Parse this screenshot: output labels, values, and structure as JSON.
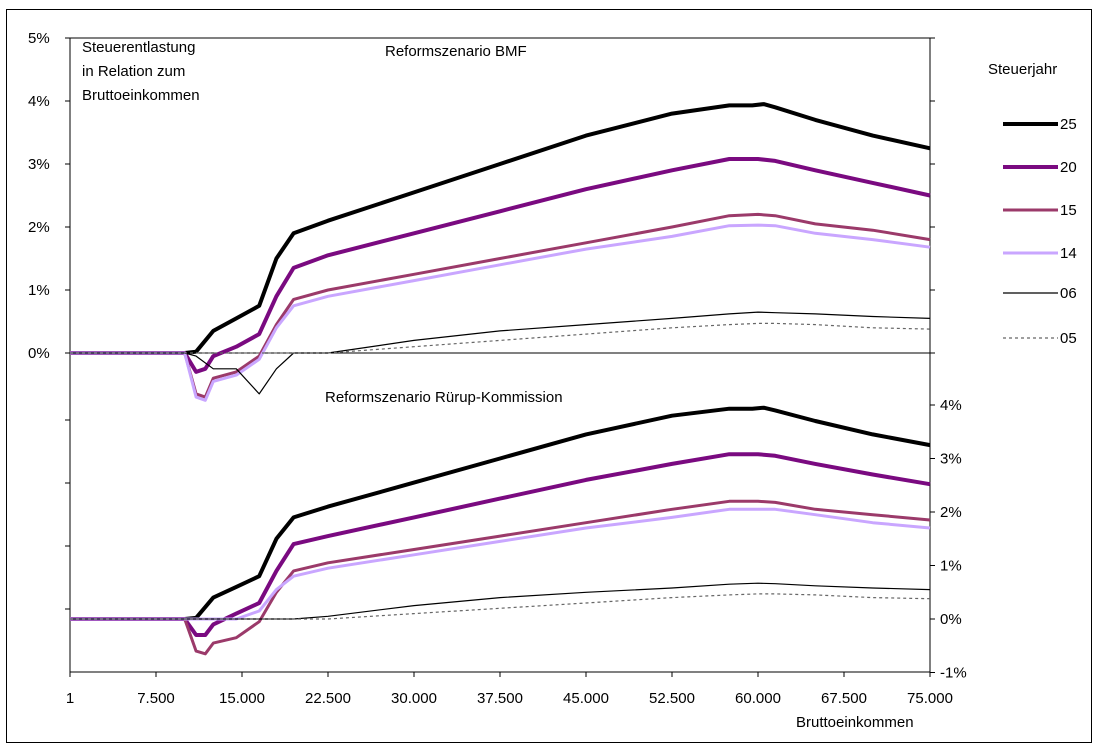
{
  "chart_data": [
    {
      "type": "line",
      "title": "Reformszenario BMF",
      "ylabel": "Steuerentlastung in Relation zum Bruttoeinkommen",
      "ylabel_lines": [
        "Steuerentlastung",
        "in Relation zum",
        "Bruttoeinkommen"
      ],
      "xlabel": "",
      "y_tick_labels": [
        "5%",
        "4%",
        "3%",
        "2%",
        "1%",
        "0%"
      ],
      "ylim": [
        0,
        5
      ],
      "xlim": [
        1,
        75000
      ],
      "legend": {
        "title": "Steuerjahr",
        "placement": "right"
      },
      "series": [
        {
          "name": "25",
          "color": "#000000",
          "style": "solid-thick",
          "x": [
            1,
            10000,
            11000,
            12500,
            14500,
            16500,
            18000,
            19500,
            22500,
            30000,
            37500,
            45000,
            52500,
            57500,
            59500,
            60500,
            61500,
            65000,
            70000,
            75000
          ],
          "y": [
            0,
            0,
            0.02,
            0.35,
            0.55,
            0.75,
            1.5,
            1.9,
            2.1,
            2.55,
            3.0,
            3.45,
            3.8,
            3.93,
            3.93,
            3.95,
            3.9,
            3.7,
            3.45,
            3.25
          ]
        },
        {
          "name": "20",
          "color": "#7a0a80",
          "style": "solid-thick",
          "x": [
            1,
            10000,
            11000,
            11800,
            12500,
            14500,
            16500,
            18000,
            19500,
            22500,
            30000,
            37500,
            45000,
            52500,
            57500,
            60000,
            61500,
            65000,
            70000,
            75000
          ],
          "y": [
            0,
            0,
            -0.3,
            -0.25,
            -0.05,
            0.1,
            0.3,
            0.9,
            1.35,
            1.55,
            1.9,
            2.25,
            2.6,
            2.9,
            3.08,
            3.08,
            3.05,
            2.9,
            2.7,
            2.5
          ]
        },
        {
          "name": "15",
          "color": "#9b3a6a",
          "style": "solid",
          "x": [
            1,
            10000,
            11000,
            11800,
            12500,
            14500,
            16500,
            18000,
            19500,
            22500,
            30000,
            37500,
            45000,
            52500,
            57500,
            60000,
            61500,
            65000,
            70000,
            75000
          ],
          "y": [
            0,
            0,
            -0.65,
            -0.7,
            -0.4,
            -0.3,
            -0.05,
            0.45,
            0.85,
            1.0,
            1.25,
            1.5,
            1.75,
            2.0,
            2.18,
            2.2,
            2.18,
            2.05,
            1.95,
            1.8
          ]
        },
        {
          "name": "14",
          "color": "#c9a6ff",
          "style": "solid",
          "x": [
            1,
            10000,
            11000,
            11800,
            12500,
            14500,
            16500,
            18000,
            19500,
            22500,
            30000,
            37500,
            45000,
            52500,
            57500,
            60000,
            61500,
            65000,
            70000,
            75000
          ],
          "y": [
            0,
            0,
            -0.7,
            -0.75,
            -0.45,
            -0.35,
            -0.1,
            0.4,
            0.75,
            0.9,
            1.15,
            1.4,
            1.65,
            1.85,
            2.02,
            2.03,
            2.02,
            1.9,
            1.8,
            1.68
          ]
        },
        {
          "name": "06",
          "color": "#000000",
          "style": "thin",
          "x": [
            1,
            10000,
            11000,
            12500,
            14500,
            16500,
            18000,
            19500,
            22500,
            30000,
            37500,
            45000,
            52500,
            57500,
            60000,
            61500,
            65000,
            70000,
            75000
          ],
          "y": [
            0,
            0,
            -0.05,
            -0.25,
            -0.25,
            -0.65,
            -0.25,
            0.0,
            0.0,
            0.2,
            0.35,
            0.45,
            0.55,
            0.62,
            0.65,
            0.64,
            0.62,
            0.58,
            0.55
          ]
        },
        {
          "name": "05",
          "color": "#666666",
          "style": "dotted",
          "x": [
            1,
            10000,
            11000,
            14500,
            16500,
            18000,
            19500,
            22500,
            30000,
            37500,
            45000,
            52500,
            57500,
            60000,
            61500,
            65000,
            70000,
            75000
          ],
          "y": [
            0,
            0,
            0,
            0,
            0,
            0,
            0,
            0,
            0.1,
            0.2,
            0.3,
            0.4,
            0.45,
            0.47,
            0.47,
            0.45,
            0.4,
            0.38
          ]
        }
      ]
    },
    {
      "type": "line",
      "title": "Reformszenario Rürup-Kommission",
      "xlabel": "Bruttoeinkommen",
      "x_tick_labels": [
        "1",
        "7.500",
        "15.000",
        "22.500",
        "30.000",
        "37.500",
        "45.000",
        "52.500",
        "60.000",
        "67.500",
        "75.000"
      ],
      "y_tick_labels": [
        "4%",
        "3%",
        "2%",
        "1%",
        "0%",
        "-1%"
      ],
      "ylim": [
        -1,
        5
      ],
      "xlim": [
        1,
        75000
      ],
      "series": [
        {
          "name": "25",
          "color": "#000000",
          "style": "solid-thick",
          "x": [
            1,
            10000,
            11000,
            12500,
            14500,
            16500,
            18000,
            19500,
            22500,
            30000,
            37500,
            45000,
            52500,
            57500,
            59500,
            60500,
            61500,
            65000,
            70000,
            75000
          ],
          "y": [
            0,
            0,
            0.02,
            0.4,
            0.6,
            0.8,
            1.5,
            1.9,
            2.1,
            2.55,
            3.0,
            3.45,
            3.8,
            3.93,
            3.93,
            3.95,
            3.9,
            3.7,
            3.45,
            3.25
          ]
        },
        {
          "name": "20",
          "color": "#7a0a80",
          "style": "solid-thick",
          "x": [
            1,
            10000,
            11000,
            11800,
            12500,
            14500,
            16500,
            18000,
            19500,
            22500,
            30000,
            37500,
            45000,
            52500,
            57500,
            60000,
            61500,
            65000,
            70000,
            75000
          ],
          "y": [
            0,
            0,
            -0.3,
            -0.3,
            -0.1,
            0.1,
            0.3,
            0.9,
            1.4,
            1.55,
            1.9,
            2.25,
            2.6,
            2.9,
            3.08,
            3.08,
            3.05,
            2.9,
            2.7,
            2.52
          ]
        },
        {
          "name": "15",
          "color": "#9b3a6a",
          "style": "solid",
          "x": [
            1,
            10000,
            11000,
            11800,
            12500,
            14500,
            16500,
            18000,
            19500,
            22500,
            30000,
            37500,
            45000,
            52500,
            57500,
            60000,
            61500,
            65000,
            70000,
            75000
          ],
          "y": [
            0,
            0,
            -0.6,
            -0.65,
            -0.45,
            -0.35,
            -0.05,
            0.5,
            0.9,
            1.05,
            1.3,
            1.55,
            1.8,
            2.05,
            2.2,
            2.2,
            2.18,
            2.05,
            1.95,
            1.85
          ]
        },
        {
          "name": "14",
          "color": "#c9a6ff",
          "style": "solid",
          "x": [
            1,
            10000,
            14500,
            16500,
            18000,
            19500,
            22500,
            30000,
            37500,
            45000,
            52500,
            57500,
            60000,
            61500,
            65000,
            70000,
            75000
          ],
          "y": [
            0,
            0,
            0,
            0.15,
            0.55,
            0.8,
            0.95,
            1.2,
            1.45,
            1.7,
            1.9,
            2.05,
            2.05,
            2.05,
            1.95,
            1.8,
            1.7
          ]
        },
        {
          "name": "06",
          "color": "#000000",
          "style": "thin",
          "x": [
            1,
            10000,
            11000,
            14500,
            18000,
            19500,
            22500,
            30000,
            37500,
            45000,
            52500,
            57500,
            60000,
            61500,
            65000,
            70000,
            75000
          ],
          "y": [
            0,
            0,
            0,
            0,
            0,
            0,
            0.05,
            0.25,
            0.4,
            0.5,
            0.58,
            0.65,
            0.67,
            0.66,
            0.62,
            0.58,
            0.55
          ]
        },
        {
          "name": "05",
          "color": "#666666",
          "style": "dotted",
          "x": [
            1,
            10000,
            14500,
            18000,
            22500,
            30000,
            37500,
            45000,
            52500,
            57500,
            60000,
            61500,
            65000,
            70000,
            75000
          ],
          "y": [
            0,
            0,
            0,
            0,
            0,
            0.1,
            0.2,
            0.3,
            0.4,
            0.45,
            0.47,
            0.47,
            0.45,
            0.4,
            0.38
          ]
        }
      ]
    }
  ]
}
